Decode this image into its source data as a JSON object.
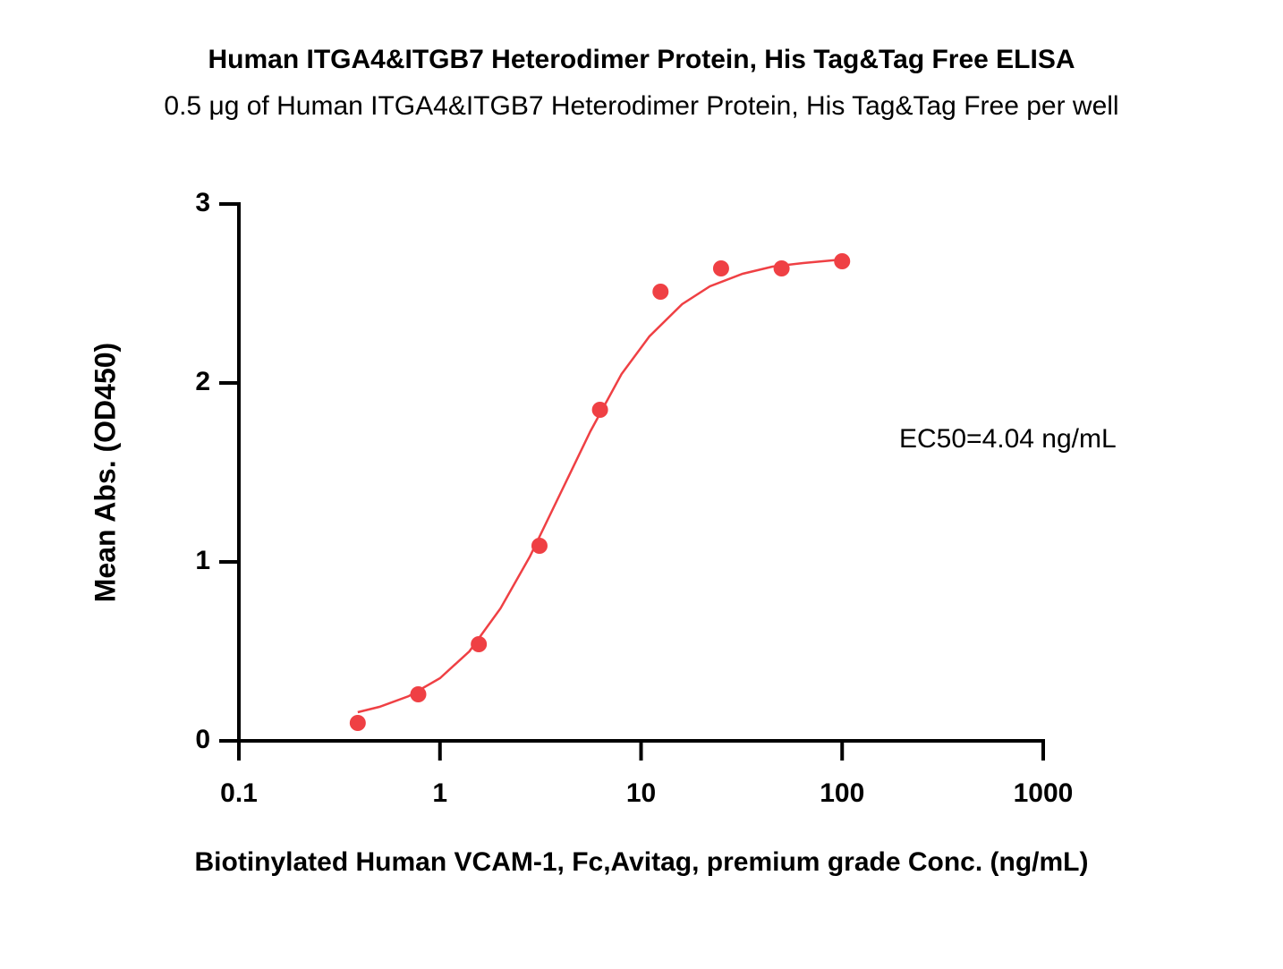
{
  "chart_data": {
    "type": "scatter",
    "title": "Human ITGA4&ITGB7 Heterodimer Protein, His Tag&Tag Free ELISA",
    "subtitle": "0.5 μg of Human ITGA4&ITGB7 Heterodimer Protein, His Tag&Tag Free per well",
    "xlabel": "Biotinylated Human VCAM-1, Fc,Avitag, premium grade Conc. (ng/mL)",
    "ylabel": "Mean Abs. (OD450)",
    "annotation": "EC50=4.04 ng/mL",
    "xscale": "log",
    "xlim": [
      0.1,
      1000
    ],
    "xticks": [
      0.1,
      1,
      10,
      100,
      1000
    ],
    "ylim": [
      0,
      3
    ],
    "yticks": [
      0,
      1,
      2,
      3
    ],
    "series": [
      {
        "type": "scatter",
        "color": "#ef4044",
        "x": [
          0.39,
          0.78,
          1.56,
          3.125,
          6.25,
          12.5,
          25,
          50,
          100
        ],
        "values": [
          0.1,
          0.26,
          0.54,
          1.09,
          1.85,
          2.51,
          2.64,
          2.64,
          2.68
        ]
      },
      {
        "type": "line",
        "color": "#ef4044",
        "x": [
          0.39,
          0.5,
          0.7,
          1,
          1.4,
          2,
          2.8,
          4,
          5.6,
          8,
          11,
          16,
          22,
          32,
          45,
          64,
          100
        ],
        "values": [
          0.16,
          0.19,
          0.25,
          0.35,
          0.5,
          0.74,
          1.03,
          1.39,
          1.73,
          2.05,
          2.26,
          2.44,
          2.54,
          2.61,
          2.65,
          2.67,
          2.69
        ]
      }
    ]
  }
}
